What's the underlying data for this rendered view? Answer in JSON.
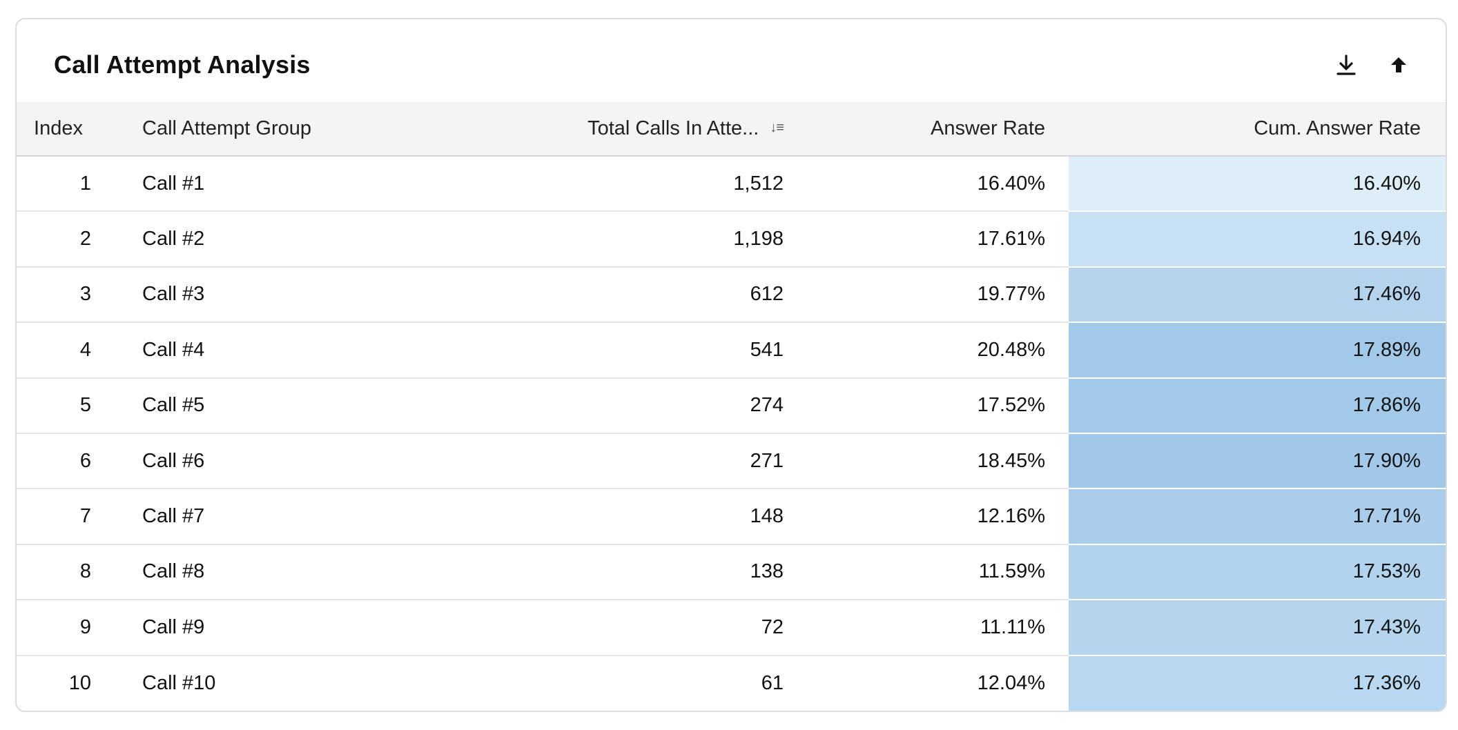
{
  "card": {
    "title": "Call Attempt Analysis",
    "download_icon": "download-icon",
    "upload_icon": "upload-icon"
  },
  "table": {
    "headers": {
      "index": "Index",
      "group": "Call Attempt Group",
      "total": "Total Calls In Atte...",
      "answer_rate": "Answer Rate",
      "cum_answer_rate": "Cum. Answer Rate"
    },
    "sort_icon": "sort-descending-icon",
    "rows": [
      {
        "index": "1",
        "group": "Call #1",
        "total": "1,512",
        "answer_rate": "16.40%",
        "cum_answer_rate": "16.40%",
        "cum_color": "#deeef8"
      },
      {
        "index": "2",
        "group": "Call #2",
        "total": "1,198",
        "answer_rate": "17.61%",
        "cum_answer_rate": "16.94%",
        "cum_color": "#c8e0f4"
      },
      {
        "index": "3",
        "group": "Call #3",
        "total": "612",
        "answer_rate": "19.77%",
        "cum_answer_rate": "17.46%",
        "cum_color": "#b4d4ee"
      },
      {
        "index": "4",
        "group": "Call #4",
        "total": "541",
        "answer_rate": "20.48%",
        "cum_answer_rate": "17.89%",
        "cum_color": "#a3c9e9"
      },
      {
        "index": "5",
        "group": "Call #5",
        "total": "274",
        "answer_rate": "17.52%",
        "cum_answer_rate": "17.86%",
        "cum_color": "#a4caea"
      },
      {
        "index": "6",
        "group": "Call #6",
        "total": "271",
        "answer_rate": "18.45%",
        "cum_answer_rate": "17.90%",
        "cum_color": "#a2c8e9"
      },
      {
        "index": "7",
        "group": "Call #7",
        "total": "148",
        "answer_rate": "12.16%",
        "cum_answer_rate": "17.71%",
        "cum_color": "#aacdeb"
      },
      {
        "index": "8",
        "group": "Call #8",
        "total": "138",
        "answer_rate": "11.59%",
        "cum_answer_rate": "17.53%",
        "cum_color": "#b2d3ee"
      },
      {
        "index": "9",
        "group": "Call #9",
        "total": "72",
        "answer_rate": "11.11%",
        "cum_answer_rate": "17.43%",
        "cum_color": "#b5d5ef"
      },
      {
        "index": "10",
        "group": "Call #10",
        "total": "61",
        "answer_rate": "12.04%",
        "cum_answer_rate": "17.36%",
        "cum_color": "#b8d7f0"
      }
    ]
  }
}
